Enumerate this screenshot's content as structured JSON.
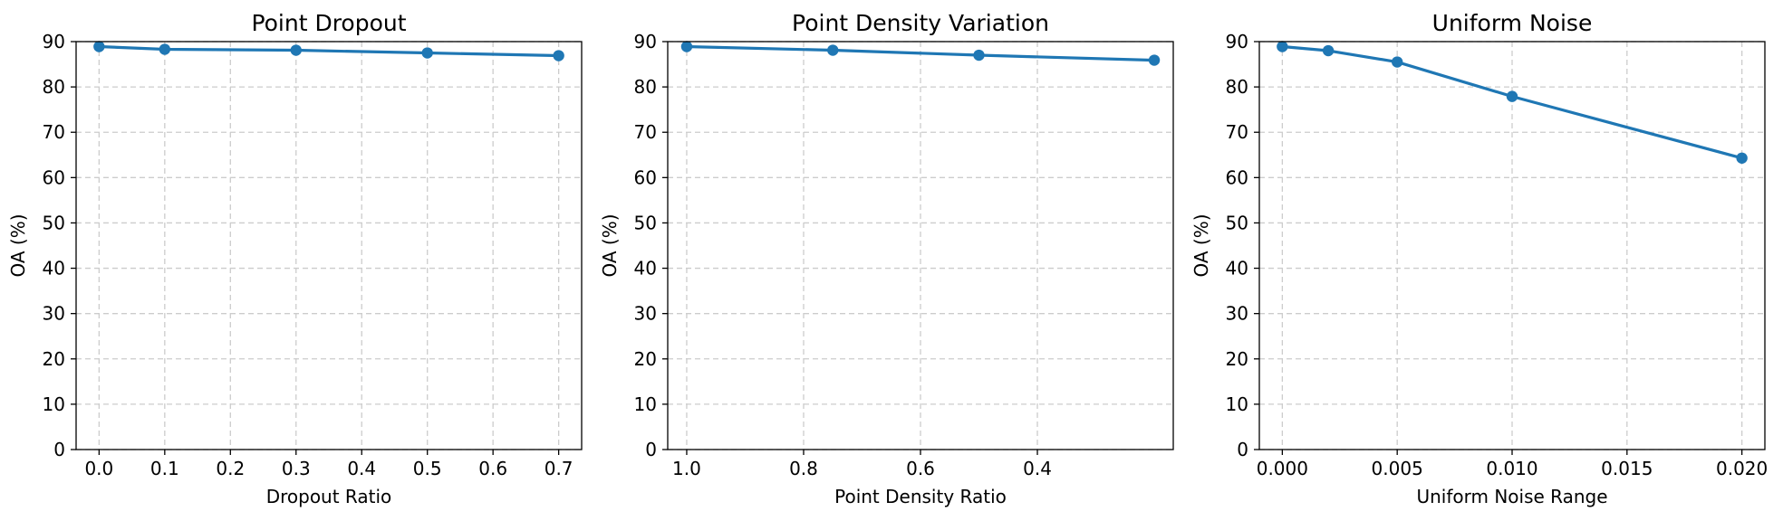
{
  "colors": {
    "series": "#1f77b4",
    "grid": "#cccccc",
    "frame": "#000000"
  },
  "chart_data": [
    {
      "type": "line",
      "title": "Point Dropout",
      "xlabel": "Dropout Ratio",
      "ylabel": "OA (%)",
      "xlim": [
        -0.035,
        0.735
      ],
      "ylim": [
        0,
        90
      ],
      "x_reversed": false,
      "xticks": [
        0.0,
        0.1,
        0.2,
        0.3,
        0.4,
        0.5,
        0.6,
        0.7
      ],
      "xtick_labels": [
        "0.0",
        "0.1",
        "0.2",
        "0.3",
        "0.4",
        "0.5",
        "0.6",
        "0.7"
      ],
      "yticks": [
        0,
        10,
        20,
        30,
        40,
        50,
        60,
        70,
        80,
        90
      ],
      "ytick_labels": [
        "0",
        "10",
        "20",
        "30",
        "40",
        "50",
        "60",
        "70",
        "80",
        "90"
      ],
      "grid": true,
      "marker": "circle",
      "series": [
        {
          "x": [
            0.0,
            0.1,
            0.3,
            0.5,
            0.7
          ],
          "y": [
            88.9,
            88.3,
            88.1,
            87.5,
            86.9
          ]
        }
      ]
    },
    {
      "type": "line",
      "title": "Point Density Variation",
      "xlabel": "Point Density Ratio",
      "ylabel": "OA (%)",
      "xlim": [
        1.0325,
        0.1675
      ],
      "ylim": [
        0,
        90
      ],
      "x_reversed": true,
      "xticks": [
        1.0,
        0.8,
        0.6,
        0.4
      ],
      "xtick_labels": [
        "1.0",
        "0.8",
        "0.6",
        "0.4"
      ],
      "yticks": [
        0,
        10,
        20,
        30,
        40,
        50,
        60,
        70,
        80,
        90
      ],
      "ytick_labels": [
        "0",
        "10",
        "20",
        "30",
        "40",
        "50",
        "60",
        "70",
        "80",
        "90"
      ],
      "grid": true,
      "marker": "circle",
      "series": [
        {
          "x": [
            1.0,
            0.75,
            0.5,
            0.2
          ],
          "y": [
            88.9,
            88.1,
            87.0,
            85.9
          ]
        }
      ]
    },
    {
      "type": "line",
      "title": "Uniform Noise",
      "xlabel": "Uniform Noise Range",
      "ylabel": "OA (%)",
      "xlim": [
        -0.001,
        0.021
      ],
      "ylim": [
        0,
        90
      ],
      "x_reversed": false,
      "xticks": [
        0.0,
        0.005,
        0.01,
        0.015,
        0.02
      ],
      "xtick_labels": [
        "0.000",
        "0.005",
        "0.010",
        "0.015",
        "0.020"
      ],
      "yticks": [
        0,
        10,
        20,
        30,
        40,
        50,
        60,
        70,
        80,
        90
      ],
      "ytick_labels": [
        "0",
        "10",
        "20",
        "30",
        "40",
        "50",
        "60",
        "70",
        "80",
        "90"
      ],
      "grid": true,
      "marker": "circle",
      "series": [
        {
          "x": [
            0.0,
            0.002,
            0.005,
            0.01,
            0.02
          ],
          "y": [
            88.9,
            88.0,
            85.5,
            77.9,
            64.3
          ]
        }
      ]
    }
  ]
}
